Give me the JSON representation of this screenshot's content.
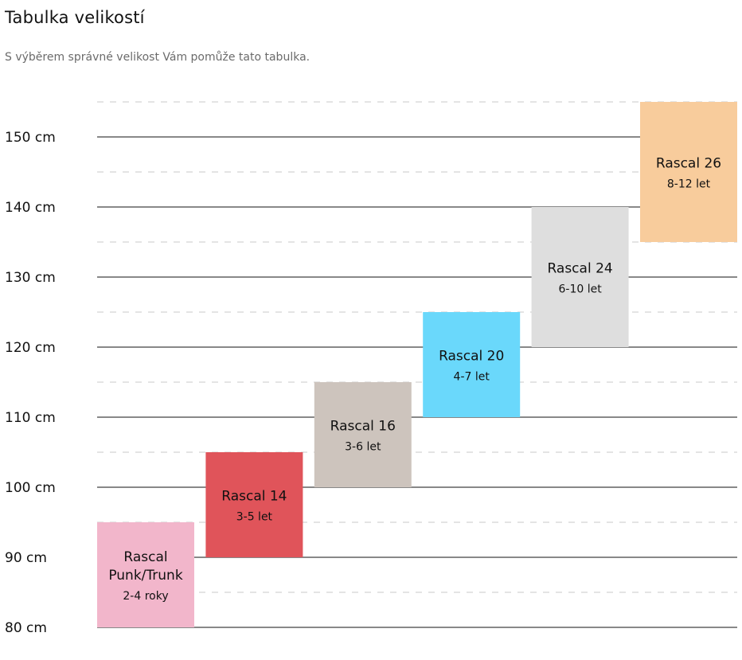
{
  "header": {
    "title": "Tabulka velikostí",
    "subtitle": "S výběrem správné velikost Vám pomůže tato tabulka."
  },
  "chart_data": {
    "type": "bar",
    "title": "Tabulka velikostí",
    "subtitle": "S výběrem správné velikost Vám pomůže tato tabulka.",
    "ylim": [
      80,
      155
    ],
    "y_unit": "cm",
    "y_ticks": [
      80,
      90,
      100,
      110,
      120,
      130,
      140,
      150
    ],
    "y_tick_labels": [
      "80 cm",
      "90 cm",
      "100 cm",
      "110 cm",
      "120 cm",
      "130 cm",
      "140 cm",
      "150 cm"
    ],
    "grid": {
      "major": true,
      "minor_dashed": true
    },
    "bars": [
      {
        "name": "Rascal Punk/Trunk",
        "lines": [
          "Rascal",
          "Punk/Trunk"
        ],
        "age": "2-4 roky",
        "low": 80,
        "high": 95,
        "color": "#f2b6cb"
      },
      {
        "name": "Rascal 14",
        "lines": [
          "Rascal 14"
        ],
        "age": "3-5 let",
        "low": 90,
        "high": 105,
        "color": "#e0545a"
      },
      {
        "name": "Rascal 16",
        "lines": [
          "Rascal 16"
        ],
        "age": "3-6 let",
        "low": 100,
        "high": 115,
        "color": "#cdc4bd"
      },
      {
        "name": "Rascal 20",
        "lines": [
          "Rascal 20"
        ],
        "age": "4-7 let",
        "low": 110,
        "high": 125,
        "color": "#6ad8fb"
      },
      {
        "name": "Rascal 24",
        "lines": [
          "Rascal 24"
        ],
        "age": "6-10 let",
        "low": 120,
        "high": 140,
        "color": "#dedede"
      },
      {
        "name": "Rascal 26",
        "lines": [
          "Rascal 26"
        ],
        "age": "8-12 let",
        "low": 135,
        "high": 155,
        "color": "#f8cc9c"
      }
    ]
  }
}
